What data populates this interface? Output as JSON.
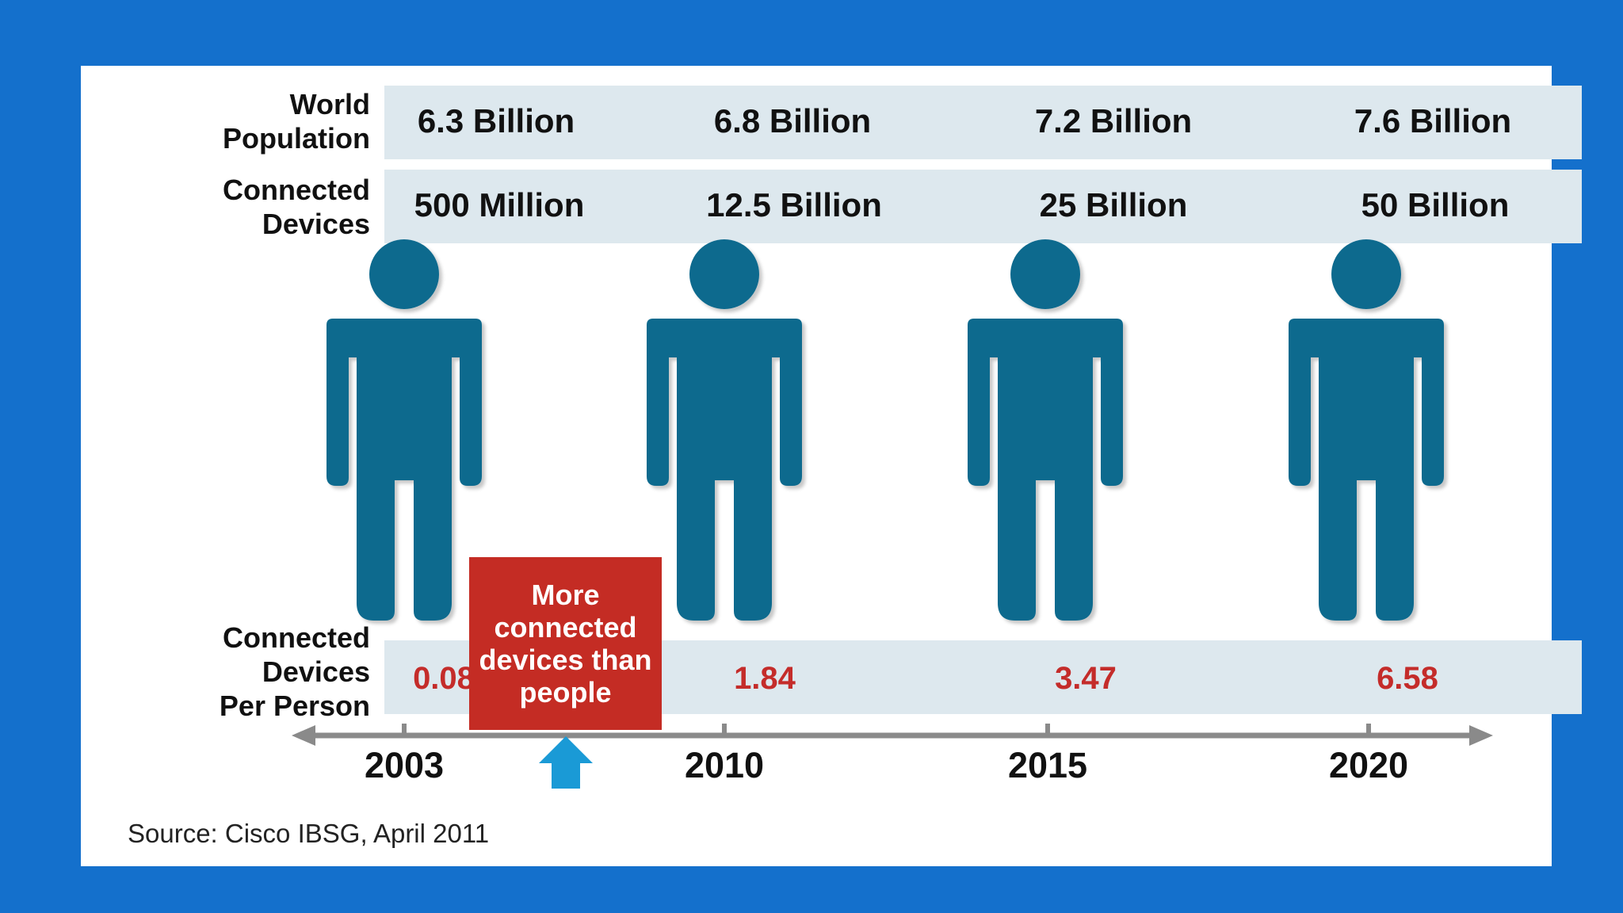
{
  "row_labels": {
    "population": [
      "World",
      "Population"
    ],
    "devices": [
      "Connected",
      "Devices"
    ],
    "per_person": [
      "Connected",
      "Devices",
      "Per Person"
    ]
  },
  "callout": "More connected devices than people",
  "source": "Source: Cisco IBSG, April 2011",
  "colors": {
    "background": "#1470cc",
    "band": "#dde8ee",
    "person": "#0f6b8e",
    "accent_red": "#c42c24",
    "arrow": "#1a9ad6"
  },
  "chart_data": {
    "type": "table",
    "title": "",
    "years": [
      "2003",
      "2010",
      "2015",
      "2020"
    ],
    "series": [
      {
        "name": "World Population",
        "values": [
          "6.3 Billion",
          "6.8 Billion",
          "7.2 Billion",
          "7.6 Billion"
        ]
      },
      {
        "name": "Connected Devices",
        "values": [
          "500 Million",
          "12.5 Billion",
          "25 Billion",
          "50 Billion"
        ]
      },
      {
        "name": "Connected Devices Per Person",
        "values": [
          "0.08",
          "1.84",
          "3.47",
          "6.58"
        ]
      }
    ]
  }
}
